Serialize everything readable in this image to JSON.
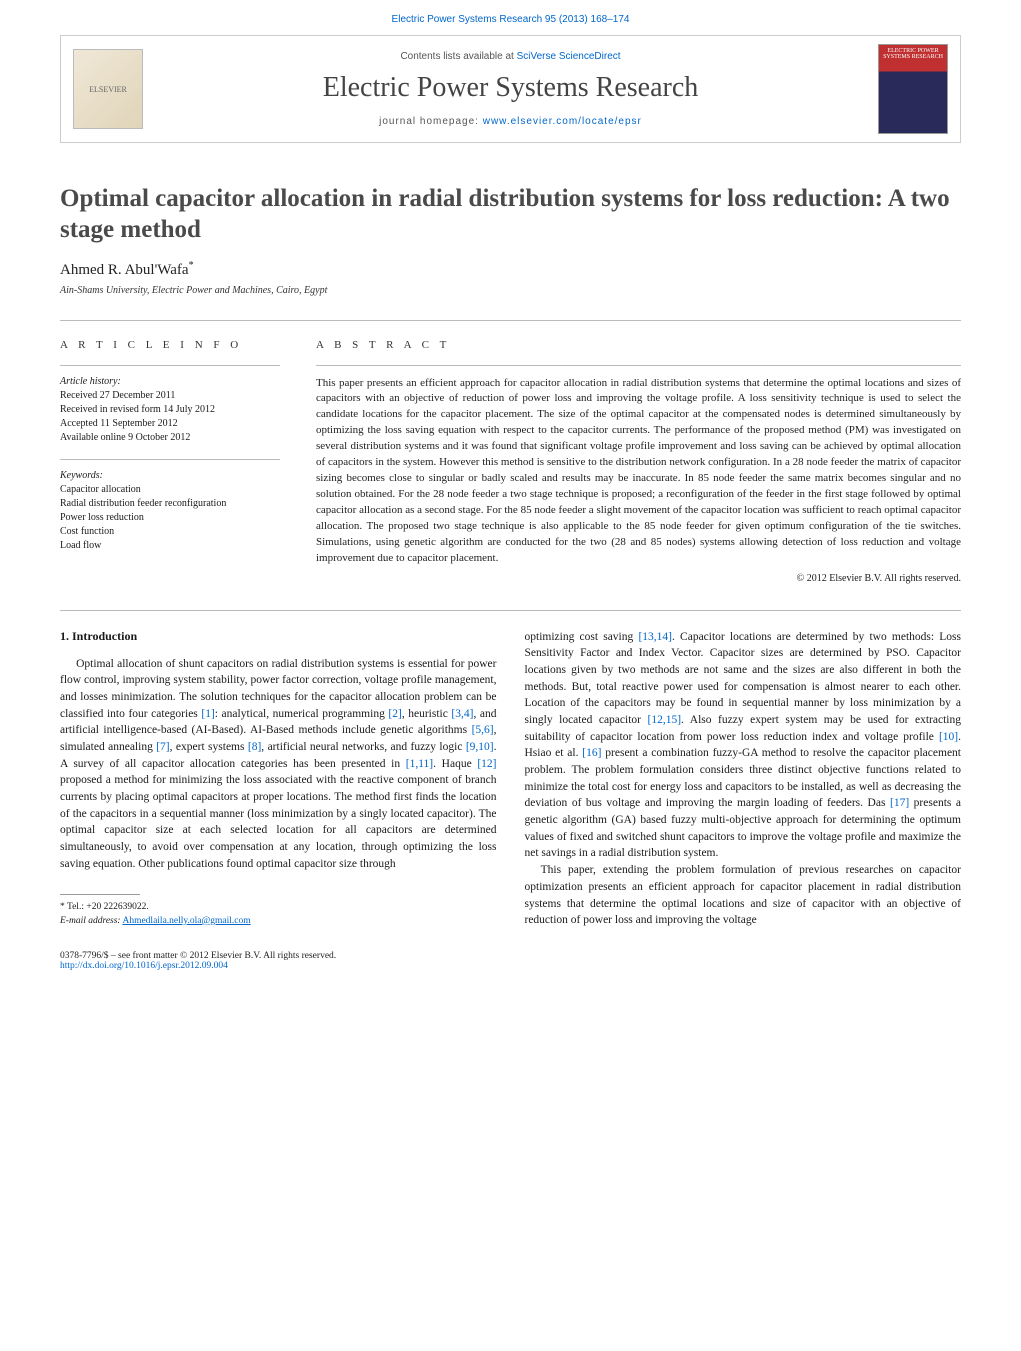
{
  "header": {
    "journal_citation": "Electric Power Systems Research 95 (2013) 168–174",
    "contents_prefix": "Contents lists available at ",
    "contents_link_text": "SciVerse ScienceDirect",
    "journal_name": "Electric Power Systems Research",
    "homepage_prefix": "journal homepage: ",
    "homepage_url": "www.elsevier.com/locate/epsr",
    "elsevier_label": "ELSEVIER",
    "cover_label": "ELECTRIC POWER SYSTEMS RESEARCH"
  },
  "title": "Optimal capacitor allocation in radial distribution systems for loss reduction: A two stage method",
  "author": {
    "name": "Ahmed R. Abul'Wafa",
    "marker": "*"
  },
  "affiliation": "Ain-Shams University, Electric Power and Machines, Cairo, Egypt",
  "article_info": {
    "heading": "a r t i c l e   i n f o",
    "history_label": "Article history:",
    "history": [
      "Received 27 December 2011",
      "Received in revised form 14 July 2012",
      "Accepted 11 September 2012",
      "Available online 9 October 2012"
    ],
    "keywords_label": "Keywords:",
    "keywords": [
      "Capacitor allocation",
      "Radial distribution feeder reconfiguration",
      "Power loss reduction",
      "Cost function",
      "Load flow"
    ]
  },
  "abstract": {
    "heading": "a b s t r a c t",
    "text": "This paper presents an efficient approach for capacitor allocation in radial distribution systems that determine the optimal locations and sizes of capacitors with an objective of reduction of power loss and improving the voltage profile. A loss sensitivity technique is used to select the candidate locations for the capacitor placement. The size of the optimal capacitor at the compensated nodes is determined simultaneously by optimizing the loss saving equation with respect to the capacitor currents. The performance of the proposed method (PM) was investigated on several distribution systems and it was found that significant voltage profile improvement and loss saving can be achieved by optimal allocation of capacitors in the system. However this method is sensitive to the distribution network configuration. In a 28 node feeder the matrix of capacitor sizing becomes close to singular or badly scaled and results may be inaccurate. In 85 node feeder the same matrix becomes singular and no solution obtained. For the 28 node feeder a two stage technique is proposed; a reconfiguration of the feeder in the first stage followed by optimal capacitor allocation as a second stage. For the 85 node feeder a slight movement of the capacitor location was sufficient to reach optimal capacitor allocation. The proposed two stage technique is also applicable to the 85 node feeder for given optimum configuration of the tie switches. Simulations, using genetic algorithm are conducted for the two (28 and 85 nodes) systems allowing detection of loss reduction and voltage improvement due to capacitor placement.",
    "copyright": "© 2012 Elsevier B.V. All rights reserved."
  },
  "intro": {
    "heading": "1.  Introduction",
    "col1_html": "Optimal allocation of shunt capacitors on radial distribution systems is essential for power flow control, improving system stability, power factor correction, voltage profile management, and losses minimization. The solution techniques for the capacitor allocation problem can be classified into four categories <span class='ref'>[1]</span>: analytical, numerical programming <span class='ref'>[2]</span>, heuristic <span class='ref'>[3,4]</span>, and artificial intelligence-based (AI-Based). AI-Based methods include genetic algorithms <span class='ref'>[5,6]</span>, simulated annealing <span class='ref'>[7]</span>, expert systems <span class='ref'>[8]</span>, artificial neural networks, and fuzzy logic <span class='ref'>[9,10]</span>. A survey of all capacitor allocation categories has been presented in <span class='ref'>[1,11]</span>. Haque <span class='ref'>[12]</span> proposed a method for minimizing the loss associated with the reactive component of branch currents by placing optimal capacitors at proper locations. The method first finds the location of the capacitors in a sequential manner (loss minimization by a singly located capacitor). The optimal capacitor size at each selected location for all capacitors are determined simultaneously, to avoid over compensation at any location, through optimizing the loss saving equation. Other publications found optimal capacitor size through",
    "col2_p1_html": "optimizing cost saving <span class='ref'>[13,14]</span>. Capacitor locations are determined by two methods: Loss Sensitivity Factor and Index Vector. Capacitor sizes are determined by PSO. Capacitor locations given by two methods are not same and the sizes are also different in both the methods. But, total reactive power used for compensation is almost nearer to each other. Location of the capacitors may be found in sequential manner by loss minimization by a singly located capacitor <span class='ref'>[12,15]</span>. Also fuzzy expert system may be used for extracting suitability of capacitor location from power loss reduction index and voltage profile <span class='ref'>[10]</span>. Hsiao et al. <span class='ref'>[16]</span> present a combination fuzzy-GA method to resolve the capacitor placement problem. The problem formulation considers three distinct objective functions related to minimize the total cost for energy loss and capacitors to be installed, as well as decreasing the deviation of bus voltage and improving the margin loading of feeders. Das <span class='ref'>[17]</span> presents a genetic algorithm (GA) based fuzzy multi-objective approach for determining the optimum values of fixed and switched shunt capacitors to improve the voltage profile and maximize the net savings in a radial distribution system.",
    "col2_p2_html": "This paper, extending the problem formulation of previous researches on capacitor optimization presents an efficient approach for capacitor placement in radial distribution systems that determine the optimal locations and size of capacitor with an objective of reduction of power loss and improving the voltage"
  },
  "footnote": {
    "tel_label": "* Tel.: +20 222639022.",
    "email_label": "E-mail address:",
    "email": "Ahmedlaila.nelly.ola@gmail.com"
  },
  "footer": {
    "issn_line": "0378-7796/$ – see front matter © 2012 Elsevier B.V. All rights reserved.",
    "doi_url": "http://dx.doi.org/10.1016/j.epsr.2012.09.004"
  },
  "colors": {
    "link": "#0066cc",
    "text": "#1a1a1a",
    "heading_gray": "#4a4a4a",
    "rule": "#bbbbbb"
  }
}
